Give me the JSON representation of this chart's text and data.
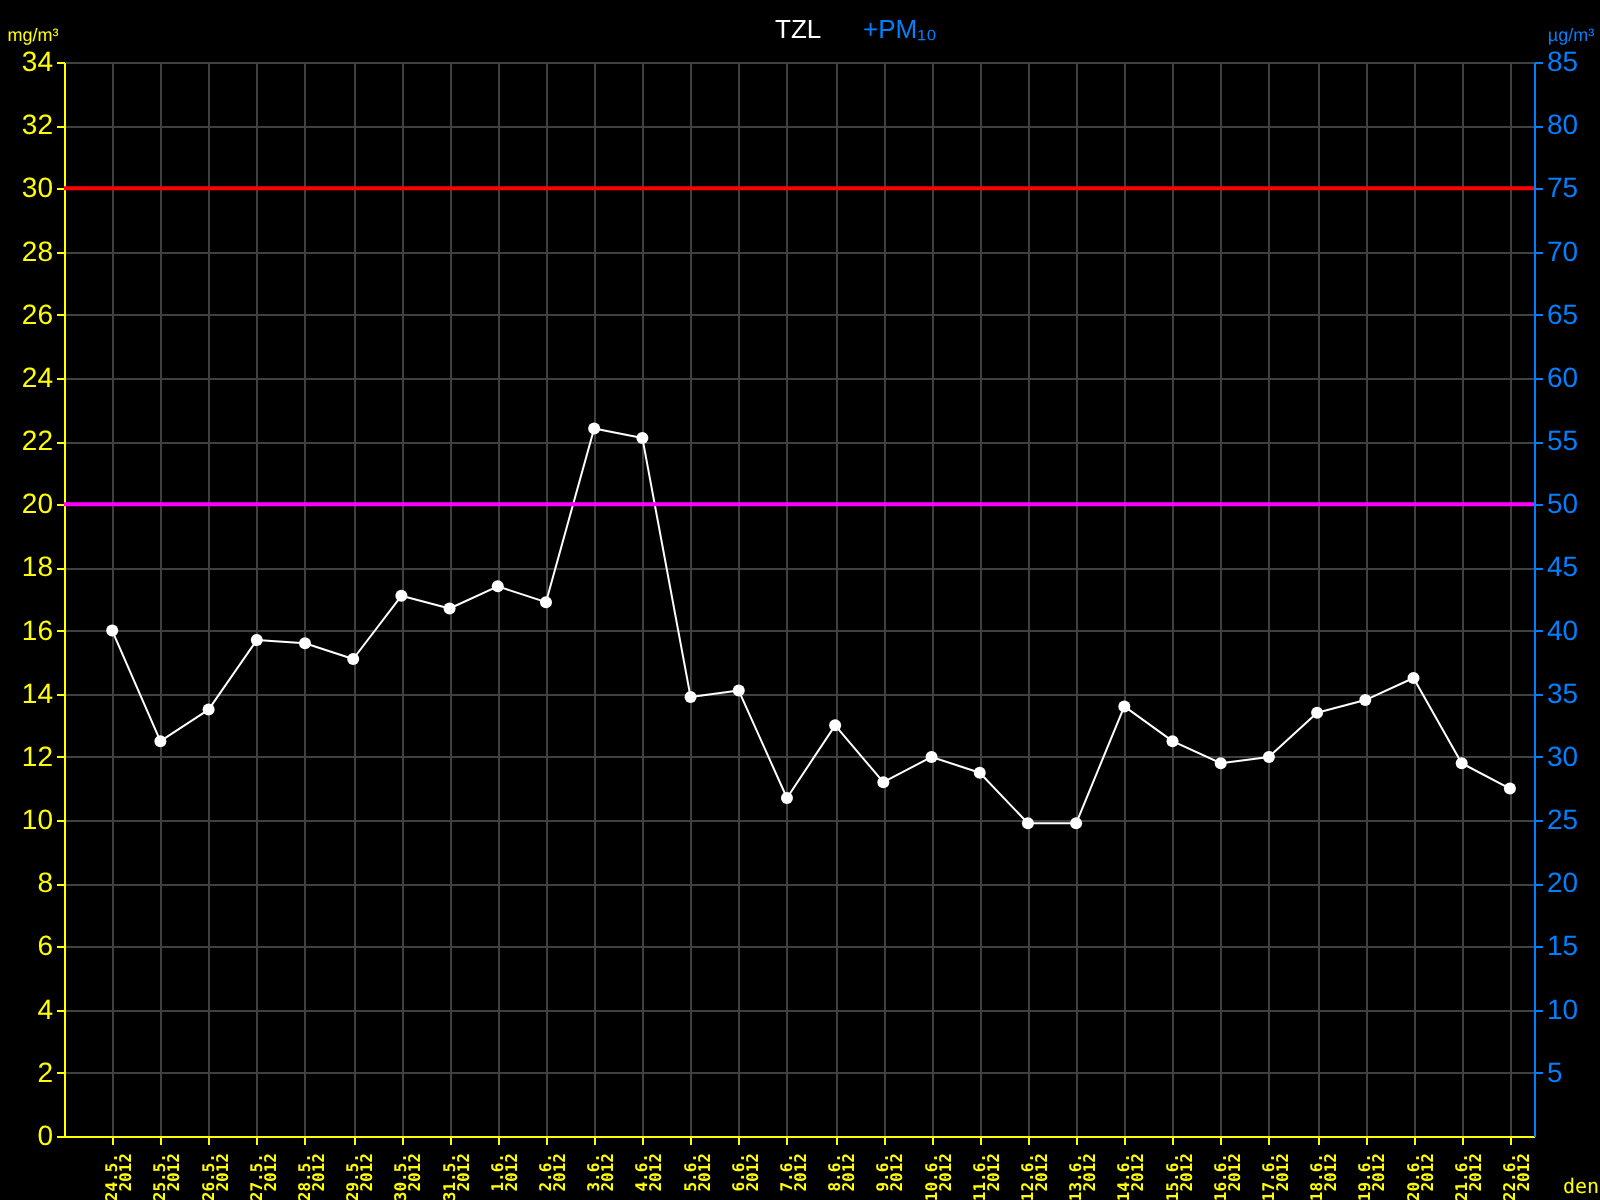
{
  "chart_data": {
    "type": "line",
    "ylabel": "mg/m³",
    "y2label": "µg/m³",
    "xlabel": "den",
    "categories": [
      "24.5.2012",
      "25.5.2012",
      "26.5.2012",
      "27.5.2012",
      "28.5.2012",
      "29.5.2012",
      "30.5.2012",
      "31.5.2012",
      "1.6.2012",
      "2.6.2012",
      "3.6.2012",
      "4.6.2012",
      "5.6.2012",
      "6.6.2012",
      "7.6.2012",
      "8.6.2012",
      "9.6.2012",
      "10.6.2012",
      "11.6.2012",
      "12.6.2012",
      "13.6.2012",
      "14.6.2012",
      "15.6.2012",
      "16.6.2012",
      "17.6.2012",
      "18.6.2012",
      "19.6.2012",
      "20.6.2012",
      "21.6.2012",
      "22.6.2012"
    ],
    "series": [
      {
        "name": "TZL",
        "color": "#ffffff",
        "values": [
          16.0,
          12.5,
          13.5,
          15.7,
          15.6,
          15.1,
          17.1,
          16.7,
          17.4,
          16.9,
          22.4,
          22.1,
          13.9,
          14.1,
          10.7,
          13.0,
          11.2,
          12.0,
          11.5,
          9.9,
          9.9,
          13.6,
          12.5,
          11.8,
          12.0,
          13.4,
          13.8,
          14.5,
          11.8,
          11.0
        ]
      },
      {
        "name": "+PM₁₀",
        "color": "#0080ff",
        "axis": "y2",
        "values": [
          null,
          null,
          null,
          null,
          null,
          null,
          null,
          null,
          null,
          null,
          null,
          null,
          null,
          null,
          null,
          null,
          null,
          null,
          null,
          null,
          null,
          null,
          null,
          null,
          null,
          null,
          null,
          null,
          null,
          null
        ]
      }
    ],
    "ylim": [
      0,
      34
    ],
    "yticks": [
      0,
      2,
      4,
      6,
      8,
      10,
      12,
      14,
      16,
      18,
      20,
      22,
      24,
      26,
      28,
      30,
      32,
      34
    ],
    "y2lim": [
      0,
      85
    ],
    "y2ticks": [
      5,
      10,
      15,
      20,
      25,
      30,
      35,
      40,
      45,
      50,
      55,
      60,
      65,
      70,
      75,
      80,
      85
    ],
    "ref_lines": [
      {
        "axis": "y",
        "value": 30,
        "color": "#ff0000"
      },
      {
        "axis": "y2",
        "value": 50,
        "color": "#ff00ff"
      }
    ],
    "grid": true,
    "legend": "top",
    "marker": "circle",
    "line_style": "solid"
  }
}
